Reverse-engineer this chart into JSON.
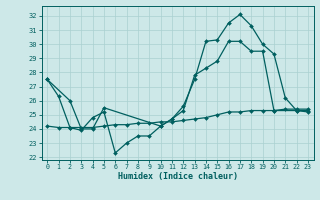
{
  "xlabel": "Humidex (Indice chaleur)",
  "xlim": [
    -0.5,
    23.5
  ],
  "ylim": [
    21.8,
    32.7
  ],
  "yticks": [
    22,
    23,
    24,
    25,
    26,
    27,
    28,
    29,
    30,
    31,
    32
  ],
  "xticks": [
    0,
    1,
    2,
    3,
    4,
    5,
    6,
    7,
    8,
    9,
    10,
    11,
    12,
    13,
    14,
    15,
    16,
    17,
    18,
    19,
    20,
    21,
    22,
    23
  ],
  "bg_color": "#cde8e8",
  "grid_color": "#aad0d0",
  "line_color": "#005f5f",
  "line1_x": [
    0,
    1,
    2,
    3,
    4,
    5,
    6,
    7,
    8,
    9,
    10,
    11,
    12,
    13,
    14,
    15,
    16,
    17,
    18,
    19,
    20,
    21,
    22,
    23
  ],
  "line1_y": [
    27.5,
    26.3,
    24.1,
    23.9,
    24.8,
    25.2,
    22.3,
    23.0,
    23.5,
    23.5,
    24.2,
    24.7,
    25.6,
    27.5,
    30.2,
    30.3,
    31.5,
    32.1,
    31.3,
    30.0,
    29.3,
    26.2,
    25.3,
    25.2
  ],
  "line2_x": [
    0,
    2,
    3,
    4,
    5,
    10,
    11,
    12,
    13,
    14,
    15,
    16,
    17,
    18,
    19,
    20,
    22,
    23
  ],
  "line2_y": [
    27.5,
    26.0,
    24.0,
    24.0,
    25.5,
    24.2,
    24.7,
    25.3,
    27.8,
    28.3,
    28.8,
    30.2,
    30.2,
    29.5,
    29.5,
    25.3,
    25.3,
    25.3
  ],
  "line3_x": [
    0,
    1,
    2,
    3,
    4,
    5,
    6,
    7,
    8,
    9,
    10,
    11,
    12,
    13,
    14,
    15,
    16,
    17,
    18,
    19,
    20,
    21,
    22,
    23
  ],
  "line3_y": [
    24.2,
    24.1,
    24.1,
    24.1,
    24.1,
    24.2,
    24.3,
    24.3,
    24.4,
    24.4,
    24.5,
    24.5,
    24.6,
    24.7,
    24.8,
    25.0,
    25.2,
    25.2,
    25.3,
    25.3,
    25.3,
    25.4,
    25.4,
    25.4
  ]
}
